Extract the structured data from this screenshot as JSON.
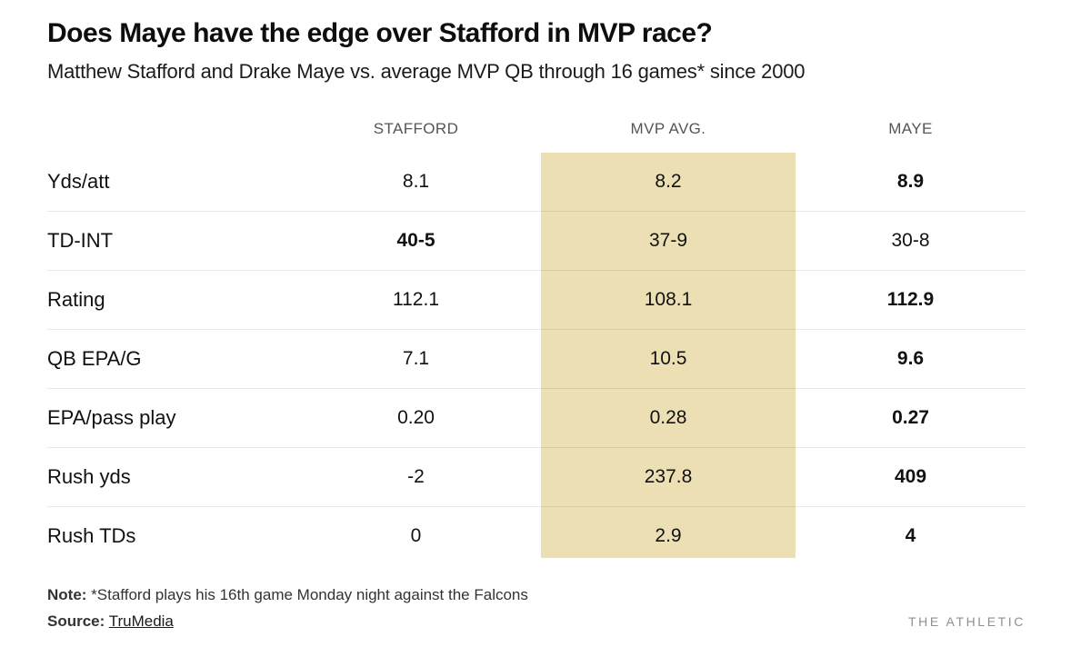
{
  "header": {
    "title": "Does Maye have the edge over Stafford in MVP race?",
    "subtitle": "Matthew Stafford and Drake Maye vs. average MVP QB through 16 games* since 2000"
  },
  "table": {
    "columns": [
      "STAFFORD",
      "MVP AVG.",
      "MAYE"
    ],
    "highlight_column": "MVP AVG.",
    "highlight_color": "#ECDFB4",
    "rows": [
      {
        "label": "Yds/att",
        "stafford": "8.1",
        "mvp_avg": "8.2",
        "maye": "8.9",
        "bold": "maye"
      },
      {
        "label": "TD-INT",
        "stafford": "40-5",
        "mvp_avg": "37-9",
        "maye": "30-8",
        "bold": "stafford"
      },
      {
        "label": "Rating",
        "stafford": "112.1",
        "mvp_avg": "108.1",
        "maye": "112.9",
        "bold": "maye"
      },
      {
        "label": "QB EPA/G",
        "stafford": "7.1",
        "mvp_avg": "10.5",
        "maye": "9.6",
        "bold": "maye"
      },
      {
        "label": "EPA/pass play",
        "stafford": "0.20",
        "mvp_avg": "0.28",
        "maye": "0.27",
        "bold": "maye"
      },
      {
        "label": "Rush yds",
        "stafford": "-2",
        "mvp_avg": "237.8",
        "maye": "409",
        "bold": "maye"
      },
      {
        "label": "Rush TDs",
        "stafford": "0",
        "mvp_avg": "2.9",
        "maye": "4",
        "bold": "maye"
      }
    ]
  },
  "chart_data": {
    "type": "table",
    "title": "Does Maye have the edge over Stafford in MVP race?",
    "subtitle": "Matthew Stafford and Drake Maye vs. average MVP QB through 16 games* since 2000",
    "categories": [
      "Yds/att",
      "TD-INT",
      "Rating",
      "QB EPA/G",
      "EPA/pass play",
      "Rush yds",
      "Rush TDs"
    ],
    "series": [
      {
        "name": "STAFFORD",
        "values": [
          "8.1",
          "40-5",
          "112.1",
          "7.1",
          "0.20",
          "-2",
          "0"
        ]
      },
      {
        "name": "MVP AVG.",
        "values": [
          "8.2",
          "37-9",
          "108.1",
          "10.5",
          "0.28",
          "237.8",
          "2.9"
        ]
      },
      {
        "name": "MAYE",
        "values": [
          "8.9",
          "30-8",
          "112.9",
          "9.6",
          "0.27",
          "409",
          "4"
        ]
      }
    ]
  },
  "footer": {
    "note_label": "Note:",
    "note_text": " *Stafford plays his 16th game Monday night against the Falcons",
    "source_label": "Source:",
    "source_link": "TruMedia",
    "brand": "THE ATHLETIC"
  }
}
